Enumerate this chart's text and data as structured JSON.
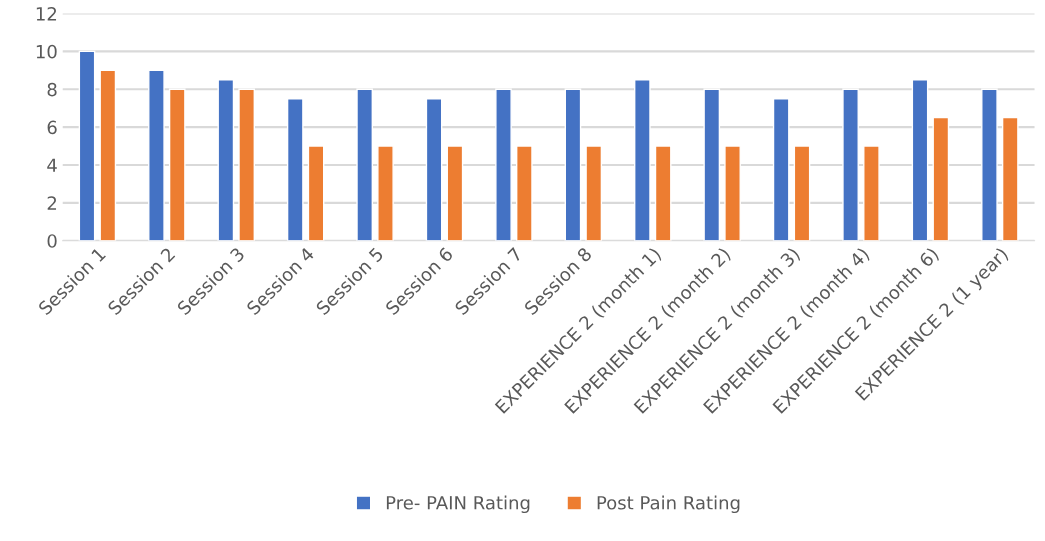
{
  "chart_data": {
    "type": "bar",
    "categories": [
      "Session 1",
      "Session 2",
      "Session 3",
      "Session 4",
      "Session 5",
      "Session 6",
      "Session 7",
      "Session 8",
      "EXPERIENCE 2 (month 1)",
      "EXPERIENCE 2 (month 2)",
      "EXPERIENCE 2 (month 3)",
      "EXPERIENCE 2 (month 4)",
      "EXPERIENCE 2 (month 6)",
      "EXPERIENCE 2 (1 year)"
    ],
    "series": [
      {
        "name": "Pre- PAIN Rating",
        "color": "#4472c4",
        "values": [
          10,
          9,
          8.5,
          7.5,
          8,
          7.5,
          8,
          8,
          8.5,
          8,
          7.5,
          8,
          8.5,
          8
        ]
      },
      {
        "name": "Post Pain Rating",
        "color": "#ed7d31",
        "values": [
          9,
          8,
          8,
          5,
          5,
          5,
          5,
          5,
          5,
          5,
          5,
          5,
          6.5,
          6.5
        ]
      }
    ],
    "ylim": [
      0,
      12
    ],
    "yticks": [
      0,
      2,
      4,
      6,
      8,
      10,
      12
    ],
    "grid": "y",
    "legend": "bottom"
  }
}
